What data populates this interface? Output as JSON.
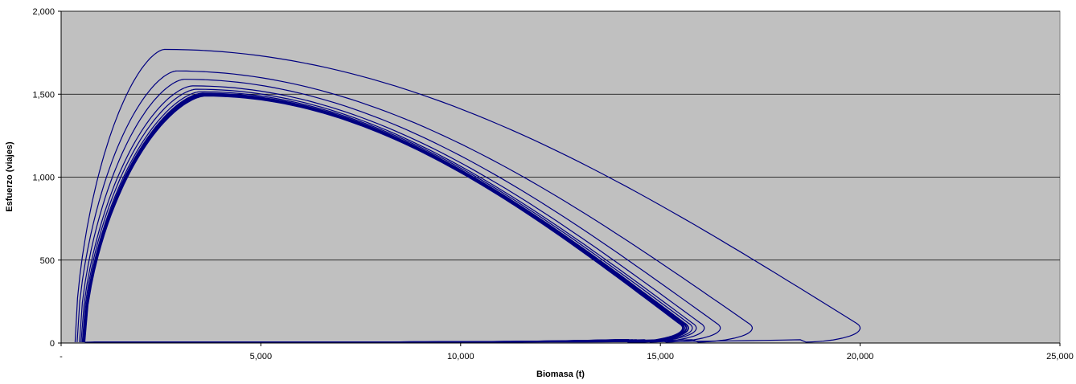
{
  "chart_data": {
    "type": "line",
    "title": "",
    "xlabel": "Biomasa (t)",
    "ylabel": "Esfuerzo (viajes)",
    "xlim": [
      0,
      25000
    ],
    "ylim": [
      0,
      2000
    ],
    "x_ticks": [
      0,
      5000,
      10000,
      15000,
      20000,
      25000
    ],
    "x_tick_labels": [
      "-",
      "5,000",
      "10,000",
      "15,000",
      "20,000",
      "25,000"
    ],
    "y_ticks": [
      0,
      500,
      1000,
      1500,
      2000
    ],
    "y_tick_labels": [
      "0",
      "500",
      "1,000",
      "1,500",
      "2,000"
    ],
    "grid": "horizontal",
    "plot_background": "#c0c0c0",
    "line_color": "#000080",
    "series": [
      {
        "loops": [
          {
            "x_max": 20000,
            "y_max": 1770,
            "x_peak": 2600,
            "x_min": 350
          },
          {
            "x_max": 17300,
            "y_max": 1640,
            "x_peak": 2900,
            "x_min": 400
          },
          {
            "x_max": 16500,
            "y_max": 1590,
            "x_peak": 3100,
            "x_min": 460
          },
          {
            "x_max": 16100,
            "y_max": 1550,
            "x_peak": 3300,
            "x_min": 500
          },
          {
            "x_max": 15900,
            "y_max": 1530,
            "x_peak": 3400,
            "x_min": 530
          },
          {
            "x_max": 15800,
            "y_max": 1515,
            "x_peak": 3500,
            "x_min": 550
          },
          {
            "x_max": 15700,
            "y_max": 1505,
            "x_peak": 3550,
            "x_min": 565
          },
          {
            "x_max": 15650,
            "y_max": 1500,
            "x_peak": 3580,
            "x_min": 575
          },
          {
            "x_max": 15600,
            "y_max": 1495,
            "x_peak": 3600,
            "x_min": 580
          },
          {
            "x_max": 15560,
            "y_max": 1490,
            "x_peak": 3620,
            "x_min": 585
          }
        ]
      }
    ]
  }
}
